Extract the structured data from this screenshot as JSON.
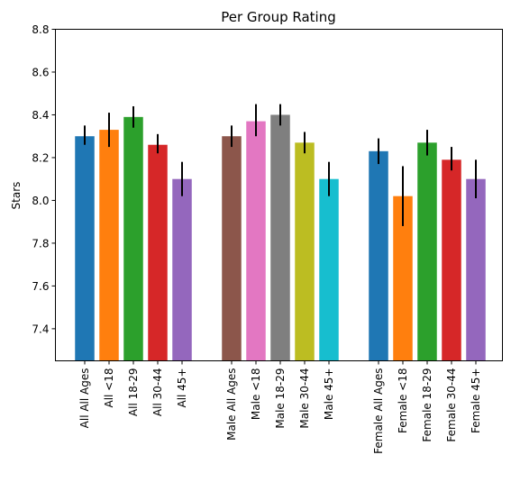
{
  "chart_data": {
    "type": "bar",
    "title": "Per Group Rating",
    "xlabel": "",
    "ylabel": "Stars",
    "ylim": [
      7.25,
      8.8
    ],
    "yticks": [
      7.4,
      7.6,
      7.8,
      8.0,
      8.2,
      8.4,
      8.6,
      8.8
    ],
    "grid": false,
    "groups": [
      {
        "bars": [
          {
            "label": "All All Ages",
            "value": 8.3,
            "err_low": 8.26,
            "err_high": 8.35,
            "color": "#1f77b4"
          },
          {
            "label": "All <18",
            "value": 8.33,
            "err_low": 8.25,
            "err_high": 8.41,
            "color": "#ff7f0e"
          },
          {
            "label": "All 18-29",
            "value": 8.39,
            "err_low": 8.34,
            "err_high": 8.44,
            "color": "#2ca02c"
          },
          {
            "label": "All 30-44",
            "value": 8.26,
            "err_low": 8.22,
            "err_high": 8.31,
            "color": "#d62728"
          },
          {
            "label": "All 45+",
            "value": 8.1,
            "err_low": 8.02,
            "err_high": 8.18,
            "color": "#9467bd"
          }
        ]
      },
      {
        "bars": [
          {
            "label": "Male All Ages",
            "value": 8.3,
            "err_low": 8.25,
            "err_high": 8.35,
            "color": "#8c564b"
          },
          {
            "label": "Male <18",
            "value": 8.37,
            "err_low": 8.3,
            "err_high": 8.45,
            "color": "#e377c2"
          },
          {
            "label": "Male 18-29",
            "value": 8.4,
            "err_low": 8.35,
            "err_high": 8.45,
            "color": "#7f7f7f"
          },
          {
            "label": "Male 30-44",
            "value": 8.27,
            "err_low": 8.22,
            "err_high": 8.32,
            "color": "#bcbd22"
          },
          {
            "label": "Male 45+",
            "value": 8.1,
            "err_low": 8.02,
            "err_high": 8.18,
            "color": "#17becf"
          }
        ]
      },
      {
        "bars": [
          {
            "label": "Female All Ages",
            "value": 8.23,
            "err_low": 8.17,
            "err_high": 8.29,
            "color": "#1f77b4"
          },
          {
            "label": "Female <18",
            "value": 8.02,
            "err_low": 7.88,
            "err_high": 8.16,
            "color": "#ff7f0e"
          },
          {
            "label": "Female 18-29",
            "value": 8.27,
            "err_low": 8.21,
            "err_high": 8.33,
            "color": "#2ca02c"
          },
          {
            "label": "Female 30-44",
            "value": 8.19,
            "err_low": 8.14,
            "err_high": 8.25,
            "color": "#d62728"
          },
          {
            "label": "Female 45+",
            "value": 8.1,
            "err_low": 8.01,
            "err_high": 8.19,
            "color": "#9467bd"
          }
        ]
      }
    ]
  }
}
